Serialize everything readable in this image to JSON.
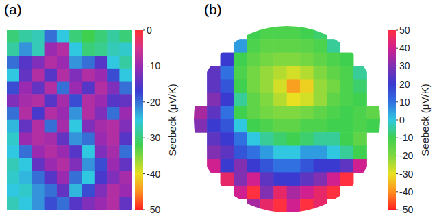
{
  "chart_data": [
    {
      "type": "heatmap",
      "title": "(a)",
      "tick_labels": false,
      "colorbar_label": "Seebeck (μV/K)",
      "colorbar_range": [
        -50,
        0
      ],
      "colorbar_ticks": [
        0,
        -10,
        -20,
        -30,
        -40,
        -50
      ],
      "cells": [
        [
          -30,
          -28,
          -27,
          -20,
          -25,
          -30,
          -32,
          -30,
          -28,
          -30
        ],
        [
          -28,
          -22,
          -27,
          -10,
          -8,
          -25,
          -30,
          -29,
          -27,
          -26
        ],
        [
          -20,
          -15,
          -12,
          -8,
          -10,
          -22,
          -20,
          -15,
          -25,
          -28
        ],
        [
          -25,
          -14,
          -8,
          -15,
          -8,
          -12,
          -8,
          -10,
          -18,
          -25
        ],
        [
          -18,
          -10,
          -14,
          -8,
          -20,
          -10,
          -15,
          -8,
          -12,
          -20
        ],
        [
          -12,
          -9,
          -8,
          -15,
          -9,
          -18,
          -8,
          -10,
          -15,
          -14
        ],
        [
          -20,
          -8,
          -16,
          -8,
          -10,
          -22,
          -8,
          -12,
          -20,
          -10
        ],
        [
          -24,
          -14,
          -8,
          -20,
          -9,
          -25,
          -12,
          -9,
          -8,
          -12
        ],
        [
          -26,
          -10,
          -8,
          -9,
          -14,
          -22,
          -20,
          -10,
          -8,
          -15
        ],
        [
          -25,
          -20,
          -10,
          -8,
          -10,
          -15,
          -25,
          -12,
          -9,
          -20
        ],
        [
          -27,
          -25,
          -14,
          -10,
          -8,
          -12,
          -22,
          -18,
          -10,
          -14
        ],
        [
          -26,
          -24,
          -20,
          -15,
          -10,
          -20,
          -25,
          -16,
          -12,
          -9
        ],
        [
          -25,
          -26,
          -22,
          -20,
          -14,
          -24,
          -18,
          -12,
          -8,
          -10
        ],
        [
          -27,
          -25,
          -22,
          -18,
          -20,
          -15,
          -12,
          -10,
          -8,
          -14
        ]
      ]
    },
    {
      "type": "heatmap",
      "title": "(b)",
      "tick_labels": false,
      "colorbar_label": "Seebeck (μV/K)",
      "colorbar_range": [
        -50,
        50
      ],
      "colorbar_ticks": [
        50,
        40,
        30,
        20,
        10,
        0,
        -10,
        -20,
        -30,
        -40,
        -50
      ],
      "cells": [
        [
          null,
          null,
          null,
          null,
          -10,
          -12,
          -12,
          -12,
          -10,
          -8,
          null,
          null,
          null,
          null
        ],
        [
          null,
          null,
          null,
          5,
          -12,
          -15,
          -15,
          -15,
          -14,
          -12,
          -5,
          null,
          null,
          null
        ],
        [
          null,
          null,
          20,
          -10,
          -15,
          -18,
          -20,
          -20,
          -18,
          -15,
          -12,
          -10,
          null,
          null
        ],
        [
          null,
          25,
          10,
          -12,
          -18,
          -22,
          -25,
          -28,
          -25,
          -20,
          -15,
          -12,
          -5,
          null
        ],
        [
          null,
          25,
          15,
          -10,
          -18,
          -22,
          -28,
          -38,
          -32,
          -22,
          -18,
          -12,
          -8,
          null
        ],
        [
          null,
          30,
          20,
          -5,
          -15,
          -20,
          -25,
          -30,
          -28,
          -22,
          -15,
          -12,
          -10,
          null
        ],
        [
          35,
          25,
          10,
          -10,
          -15,
          -18,
          -20,
          -20,
          -18,
          -15,
          -12,
          -10,
          -12,
          -15
        ],
        [
          30,
          20,
          15,
          0,
          -10,
          -12,
          -15,
          -15,
          -12,
          -12,
          -10,
          -10,
          -12,
          -10
        ],
        [
          null,
          25,
          20,
          10,
          0,
          -5,
          -8,
          -10,
          -8,
          -5,
          -5,
          -10,
          -15,
          null
        ],
        [
          null,
          30,
          25,
          15,
          10,
          5,
          0,
          0,
          5,
          5,
          0,
          -5,
          -10,
          null
        ],
        [
          null,
          40,
          20,
          30,
          20,
          15,
          10,
          10,
          15,
          20,
          20,
          25,
          40,
          null
        ],
        [
          null,
          null,
          45,
          30,
          40,
          25,
          20,
          20,
          25,
          30,
          40,
          50,
          null,
          null
        ],
        [
          null,
          null,
          null,
          40,
          50,
          30,
          45,
          35,
          40,
          45,
          50,
          null,
          null,
          null
        ],
        [
          null,
          null,
          null,
          null,
          35,
          45,
          50,
          40,
          50,
          45,
          null,
          null,
          null,
          null
        ]
      ]
    }
  ]
}
